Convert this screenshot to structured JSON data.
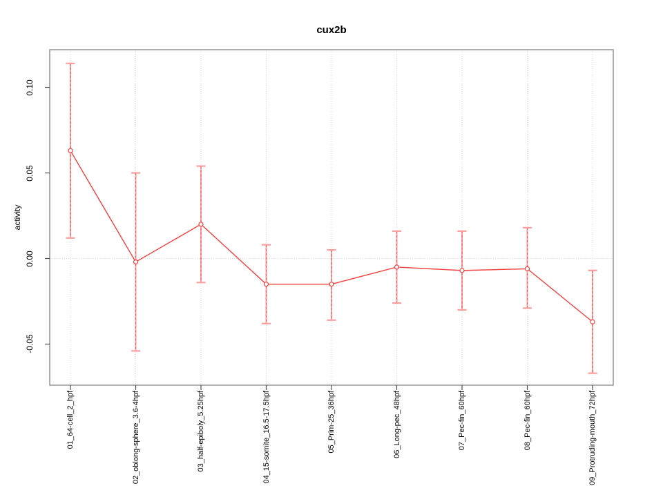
{
  "chart_data": {
    "type": "line",
    "title": "cux2b",
    "xlabel": "",
    "ylabel": "activity",
    "categories": [
      "01_64-cell_2_hpf",
      "02_oblong-sphere_3.6-4hpf",
      "03_half-epiboly_5.25hpf",
      "04_15-somite_16.5-17.5hpf",
      "05_Prim-25_36hpf",
      "06_Long-pec_48hpf",
      "07_Pec-fin_60hpf",
      "08_Pec-fin_60hpf",
      "09_Protruding-mouth_72hpf"
    ],
    "series": [
      {
        "name": "activity",
        "values": [
          0.063,
          -0.002,
          0.02,
          -0.015,
          -0.015,
          -0.005,
          -0.007,
          -0.006,
          -0.037
        ],
        "ci_high": [
          0.114,
          0.05,
          0.054,
          0.008,
          0.005,
          0.016,
          0.016,
          0.018,
          -0.007
        ],
        "ci_low": [
          0.012,
          -0.054,
          -0.014,
          -0.038,
          -0.036,
          -0.026,
          -0.03,
          -0.029,
          -0.067
        ]
      }
    ],
    "yticks": [
      -0.05,
      0.0,
      0.05,
      0.1
    ],
    "ytick_labels": [
      "-0.05",
      "0.00",
      "0.05",
      "0.10"
    ],
    "ylim": [
      -0.074,
      0.122
    ],
    "grid": {
      "vertical": "dotted line at each category",
      "horizontal": "dotted line at y=0"
    },
    "legend": "none",
    "marker": "open-circle",
    "colors": {
      "series": "#f4403f",
      "error_bar": "#ff9c9c",
      "error_bar_dash": "#f25555",
      "grid": "#d6d6d6",
      "frame": "#848484",
      "tick": "#4d4d4d",
      "text": "#000000",
      "background": "#ffffff"
    }
  }
}
